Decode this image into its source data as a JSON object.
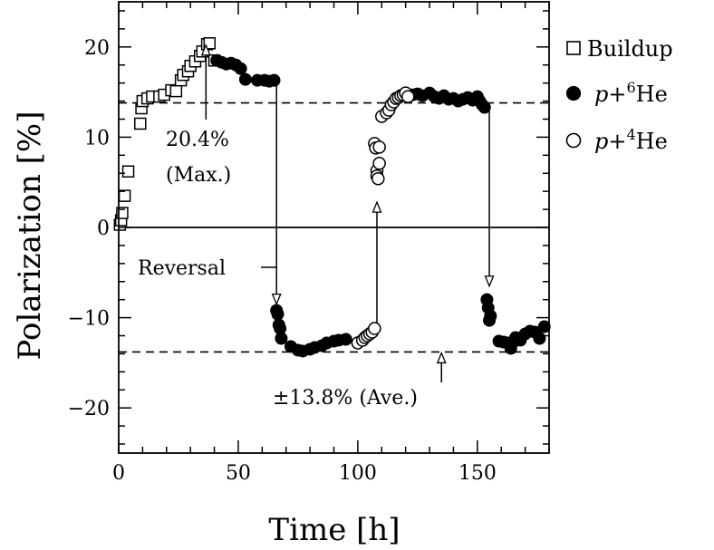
{
  "chart_data": {
    "type": "scatter",
    "title": "",
    "xlabel": "Time [h]",
    "ylabel": "Polarization [%]",
    "xlim": [
      0,
      180
    ],
    "ylim": [
      -25,
      25
    ],
    "xticks": [
      0,
      50,
      100,
      150
    ],
    "yticks": [
      -20,
      -10,
      0,
      10,
      20
    ],
    "xtick_labels": [
      "0",
      "50",
      "100",
      "150"
    ],
    "ytick_labels": [
      "−20",
      "−10",
      "0",
      "10",
      "20"
    ],
    "legend_position": "right",
    "series": [
      {
        "name": "Buildup",
        "marker": "open-square",
        "x": [
          0.5,
          1,
          1.5,
          2.5,
          4,
          9,
          9.5,
          10,
          12,
          14,
          17,
          19,
          22,
          24,
          26,
          27,
          29,
          30,
          32,
          34,
          35,
          37,
          38,
          40
        ],
        "y": [
          0.3,
          0.8,
          1.6,
          3.5,
          6.2,
          11.5,
          13.2,
          14,
          14.3,
          14.5,
          14.5,
          14.7,
          15.2,
          15.1,
          16.3,
          16.9,
          17.3,
          17.9,
          18.4,
          19,
          19.5,
          20.3,
          20.4,
          18.5
        ]
      },
      {
        "name": "p+⁶He",
        "marker": "filled-circle",
        "x": [
          41,
          43,
          45,
          47,
          49,
          51,
          53,
          58,
          61,
          63,
          65,
          66,
          66.5,
          67,
          67.5,
          68,
          72,
          75,
          77,
          80,
          82,
          85,
          87,
          90,
          92,
          95,
          123,
          125,
          127,
          130,
          132,
          134,
          136,
          138,
          140,
          142,
          144,
          146,
          148,
          150,
          151,
          152,
          153,
          154,
          154.5,
          155,
          155.5,
          159,
          161,
          163,
          164,
          165,
          166,
          168,
          170,
          172,
          174,
          176,
          178
        ],
        "y": [
          18.5,
          18.3,
          18.1,
          18.2,
          18,
          17.6,
          16.4,
          16.3,
          16.3,
          16.2,
          16.3,
          -9.2,
          -9.6,
          -10.8,
          -11.2,
          -12.3,
          -13.2,
          -13.6,
          -13.7,
          -13.5,
          -13.3,
          -13.1,
          -12.8,
          -12.6,
          -12.5,
          -12.4,
          14.7,
          14.8,
          14.6,
          14.9,
          14.5,
          14.3,
          14.6,
          14.2,
          14.3,
          14,
          14.2,
          14.4,
          14.1,
          14.5,
          14,
          13.6,
          13.3,
          -8,
          -8.9,
          -10.3,
          -9.8,
          -12.6,
          -12.7,
          -12.8,
          -13.4,
          -12.7,
          -12.2,
          -12.5,
          -11.8,
          -11.5,
          -11.6,
          -12.3,
          -11
        ]
      },
      {
        "name": "p+⁴He",
        "marker": "open-circle",
        "x": [
          100,
          102,
          103,
          104,
          105,
          106,
          107,
          107,
          107.5,
          108,
          108,
          108.5,
          109,
          109,
          110,
          112,
          113,
          114,
          115,
          116,
          117,
          118,
          119,
          120,
          121
        ],
        "y": [
          -12.8,
          -12.5,
          -12.2,
          -12,
          -11.8,
          -11.6,
          -11.2,
          9.3,
          8.8,
          6.3,
          5.7,
          5.4,
          7.1,
          8.9,
          12.3,
          12.7,
          13,
          13.6,
          13.9,
          14.3,
          14.4,
          14.6,
          14.7,
          14.9,
          14.5
        ]
      }
    ],
    "reference_lines": [
      {
        "type": "dashed",
        "y": 13.8
      },
      {
        "type": "dashed",
        "y": -13.8
      },
      {
        "type": "solid",
        "y": 0
      }
    ],
    "annotations": {
      "max_value": "20.4%",
      "max_label": "(Max.)",
      "reversal_label": "Reversal",
      "average_label": "±13.8% (Ave.)"
    },
    "reversal_arrows": [
      {
        "x": 66,
        "y_from": 16.2,
        "y_to": -8.5
      },
      {
        "x": 108,
        "y_from": -10.8,
        "y_to": 2.8
      },
      {
        "x": 155,
        "y_from": 13.2,
        "y_to": -6.5
      }
    ]
  },
  "legend": {
    "buildup_label": "Buildup",
    "he6_prefix": "p",
    "he6_mass": "6",
    "he6_element": "He",
    "he4_prefix": "p",
    "he4_mass": "4",
    "he4_element": "He"
  }
}
